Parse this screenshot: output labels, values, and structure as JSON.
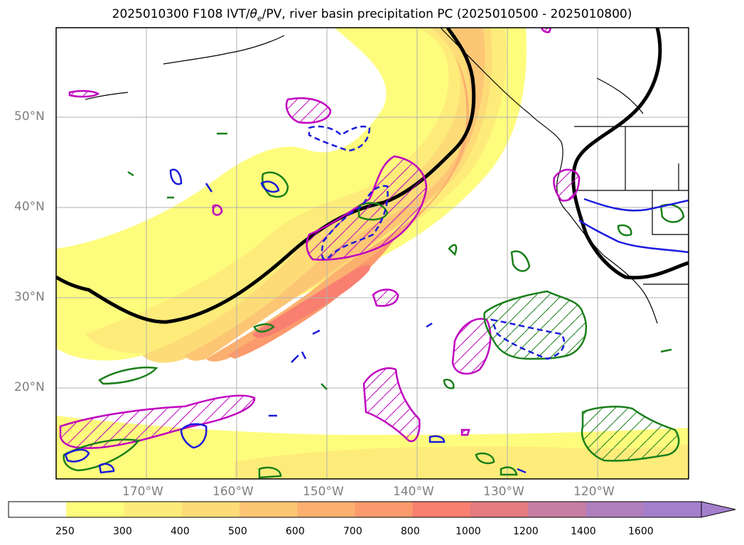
{
  "title": {
    "prefix": "2025010300 F108 IVT/",
    "theta": "θ",
    "theta_sub": "e",
    "suffix": "/PV, river basin precipitation PC (2025010500 - 2025010800)"
  },
  "axes": {
    "lat_labels": [
      "50°N",
      "40°N",
      "30°N",
      "20°N"
    ],
    "lon_labels": [
      "170°W",
      "160°W",
      "150°W",
      "140°W",
      "130°W",
      "120°W"
    ]
  },
  "colorbar": {
    "ticks": [
      "250",
      "300",
      "400",
      "500",
      "600",
      "700",
      "800",
      "1000",
      "1200",
      "1400",
      "1600"
    ],
    "colors": [
      "#ffffff",
      "#fefc7d",
      "#feec7a",
      "#fddc78",
      "#fdc675",
      "#fcb070",
      "#fb9a6d",
      "#f97f71",
      "#e47b80",
      "#c77ea4",
      "#b07fbe",
      "#a47fcc"
    ],
    "extend": "max"
  },
  "legend_colors": {
    "ivt_high": "#f6a27d",
    "ivt_core": "#f37d75",
    "theta_e": "#000000",
    "pv_magenta": "#c000c0",
    "precip_green": "#1a7f1a",
    "precip_blue": "#1a1adc"
  }
}
